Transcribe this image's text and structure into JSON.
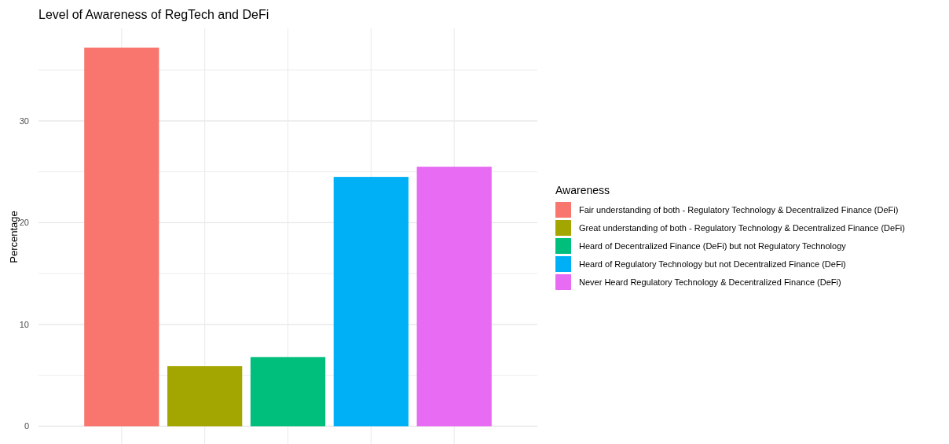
{
  "chart_data": {
    "type": "bar",
    "title": "Level of Awareness of RegTech and DeFi",
    "ylabel": "Percentage",
    "legend_title": "Awareness",
    "categories": [
      null,
      null,
      null,
      null,
      null
    ],
    "series": [
      {
        "name": "Fair understanding of both - Regulatory Technology & Decentralized Finance (DeFi)",
        "color": "#f8766d",
        "values": [
          37.2,
          null,
          null,
          null,
          null
        ]
      },
      {
        "name": "Great understanding of both - Regulatory Technology & Decentralized Finance (DeFi)",
        "color": "#a3a500",
        "values": [
          null,
          5.9,
          null,
          null,
          null
        ]
      },
      {
        "name": "Heard of Decentralized Finance (DeFi) but not Regulatory Technology",
        "color": "#00bf7d",
        "values": [
          null,
          null,
          6.8,
          null,
          null
        ]
      },
      {
        "name": "Heard of Regulatory Technology but not Decentralized Finance (DeFi)",
        "color": "#00b0f6",
        "values": [
          null,
          null,
          null,
          24.5,
          null
        ]
      },
      {
        "name": "Never Heard Regulatory Technology & Decentralized Finance (DeFi)",
        "color": "#e76bf3",
        "values": [
          null,
          null,
          null,
          null,
          25.5
        ]
      }
    ],
    "ylim": [
      -1.9,
      39.1
    ],
    "yticks": [
      0,
      {
        "value": 5,
        "label": null
      },
      10,
      {
        "value": 15,
        "label": null
      },
      20,
      {
        "value": 25,
        "label": null
      },
      30,
      {
        "value": 35,
        "label": null
      }
    ],
    "grid": true,
    "legend": "right"
  }
}
